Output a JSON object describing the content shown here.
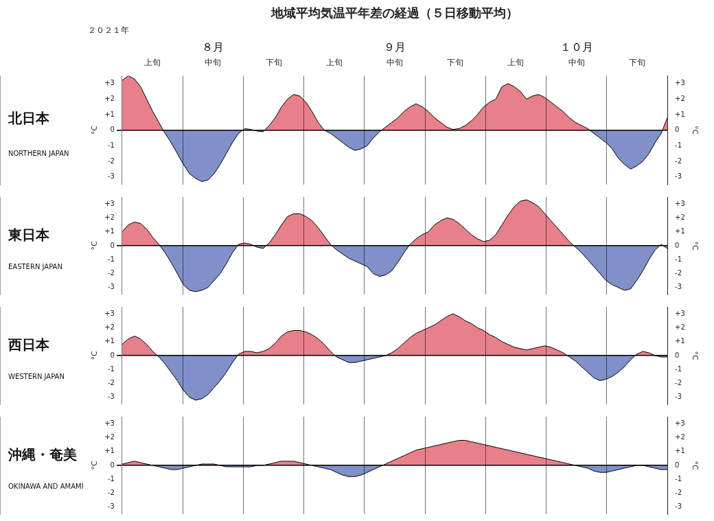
{
  "chart_data": [
    {
      "type": "area",
      "title": "地域平均気温平年差の経過（５日移動平均）",
      "subtitle": "２０２１年",
      "annotations": [
        {
          "text": "北日本"
        },
        {
          "text": "NORTHERN JAPAN"
        },
        {
          "text": "８月",
          "x": 15
        },
        {
          "text": "９月",
          "x": 45
        },
        {
          "text": "１０月",
          "x": 75
        }
      ],
      "x": [
        0,
        1.0112,
        2.0225,
        3.0337,
        4.0449,
        5.0562,
        6.0674,
        7.0787,
        8.0899,
        9.1011,
        10.1124,
        11.1236,
        12.1348,
        13.1461,
        14.1573,
        15.1685,
        16.1798,
        17.191,
        18.2022,
        19.2135,
        20.2247,
        21.236,
        22.2472,
        23.2584,
        24.2697,
        25.2809,
        26.2921,
        27.3034,
        28.3146,
        29.3258,
        30.3371,
        31.3483,
        32.3596,
        33.3708,
        34.382,
        35.3933,
        36.4045,
        37.4157,
        38.427,
        39.4382,
        40.4494,
        41.4607,
        42.4719,
        43.4831,
        44.4944,
        45.5056,
        46.5169,
        47.5281,
        48.5393,
        49.5506,
        50.5618,
        51.573,
        52.5843,
        53.5955,
        54.6067,
        55.618,
        56.6292,
        57.6404,
        58.6517,
        59.6629,
        60.6742,
        61.6854,
        62.6966,
        63.7079,
        64.7191,
        65.7303,
        66.7416,
        67.7528,
        68.764,
        69.7753,
        70.7865,
        71.7978,
        72.809,
        73.8202,
        74.8315,
        75.8427,
        76.8539,
        77.8652,
        78.8764,
        79.8876,
        80.8989,
        81.9101,
        82.9213,
        83.9326,
        84.9438,
        85.9551,
        86.9663,
        87.9775,
        88.9888,
        90
      ],
      "values": [
        3.2,
        3.5,
        3.3,
        2.8,
        2.0,
        1.2,
        0.5,
        -0.2,
        -0.8,
        -1.5,
        -2.2,
        -2.8,
        -3.1,
        -3.3,
        -3.2,
        -2.8,
        -2.2,
        -1.5,
        -0.8,
        -0.2,
        0.1,
        0.05,
        -0.05,
        -0.1,
        0.3,
        0.8,
        1.5,
        2.0,
        2.3,
        2.2,
        1.8,
        1.2,
        0.5,
        0.0,
        -0.2,
        -0.5,
        -0.8,
        -1.1,
        -1.3,
        -1.2,
        -1.0,
        -0.5,
        -0.1,
        0.2,
        0.5,
        0.8,
        1.2,
        1.5,
        1.7,
        1.5,
        1.2,
        0.8,
        0.5,
        0.2,
        0.05,
        0.1,
        0.3,
        0.6,
        1.0,
        1.5,
        1.8,
        2.0,
        2.8,
        3.0,
        2.8,
        2.5,
        2.0,
        2.2,
        2.3,
        2.1,
        1.8,
        1.5,
        1.2,
        0.8,
        0.5,
        0.3,
        0.1,
        -0.2,
        -0.5,
        -0.8,
        -1.2,
        -1.8,
        -2.2,
        -2.5,
        -2.3,
        -2.0,
        -1.5,
        -0.8,
        -0.2,
        0.8
      ],
      "color": "#000000",
      "colors": [
        "#E8808A",
        "#8090C8"
      ],
      "xlim": [
        0,
        90
      ],
      "xticks": [
        0,
        10,
        20,
        30,
        40,
        50,
        60,
        70,
        80,
        90
      ],
      "x2lim": [
        0,
        90
      ],
      "x2ticks": [
        {
          "value": 5,
          "label": "上旬"
        },
        {
          "value": 15,
          "label": "中旬"
        },
        {
          "value": 25,
          "label": "下旬"
        },
        {
          "value": 35,
          "label": "上旬"
        },
        {
          "value": 45,
          "label": "中旬"
        },
        {
          "value": 55,
          "label": "下旬"
        },
        {
          "value": 65,
          "label": "上旬"
        },
        {
          "value": 75,
          "label": "中旬"
        },
        {
          "value": 85,
          "label": "下旬"
        }
      ],
      "ylabel": "°C",
      "ylim": [
        -3.5,
        3.5
      ],
      "yticks": [
        -3,
        -2,
        -1,
        0,
        {
          "value": 1,
          "label": "+1"
        },
        {
          "value": 2,
          "label": "+2"
        },
        {
          "value": 3,
          "label": "+3"
        }
      ],
      "y2label": "°C",
      "y2lim": [
        -3.5,
        3.5
      ],
      "y2ticks": [
        -3,
        -2,
        -1,
        0,
        {
          "value": 1,
          "label": "+1"
        },
        {
          "value": 2,
          "label": "+2"
        },
        {
          "value": 3,
          "label": "+3"
        }
      ],
      "grid": "x",
      "tick_labels": "y"
    },
    {
      "type": "area",
      "annotations": [
        {
          "text": "東日本"
        },
        {
          "text": "EASTERN JAPAN"
        }
      ],
      "x": [
        0,
        1.0112,
        2.0225,
        3.0337,
        4.0449,
        5.0562,
        6.0674,
        7.0787,
        8.0899,
        9.1011,
        10.1124,
        11.1236,
        12.1348,
        13.1461,
        14.1573,
        15.1685,
        16.1798,
        17.191,
        18.2022,
        19.2135,
        20.2247,
        21.236,
        22.2472,
        23.2584,
        24.2697,
        25.2809,
        26.2921,
        27.3034,
        28.3146,
        29.3258,
        30.3371,
        31.3483,
        32.3596,
        33.3708,
        34.382,
        35.3933,
        36.4045,
        37.4157,
        38.427,
        39.4382,
        40.4494,
        41.4607,
        42.4719,
        43.4831,
        44.4944,
        45.5056,
        46.5169,
        47.5281,
        48.5393,
        49.5506,
        50.5618,
        51.573,
        52.5843,
        53.5955,
        54.6067,
        55.618,
        56.6292,
        57.6404,
        58.6517,
        59.6629,
        60.6742,
        61.6854,
        62.6966,
        63.7079,
        64.7191,
        65.7303,
        66.7416,
        67.7528,
        68.764,
        69.7753,
        70.7865,
        71.7978,
        72.809,
        73.8202,
        74.8315,
        75.8427,
        76.8539,
        77.8652,
        78.8764,
        79.8876,
        80.8989,
        81.9101,
        82.9213,
        83.9326,
        84.9438,
        85.9551,
        86.9663,
        87.9775,
        88.9888,
        90
      ],
      "values": [
        1.0,
        1.5,
        1.7,
        1.6,
        1.2,
        0.6,
        0.1,
        -0.5,
        -1.2,
        -2.0,
        -2.8,
        -3.2,
        -3.3,
        -3.2,
        -3.0,
        -2.5,
        -2.0,
        -1.3,
        -0.5,
        0.1,
        0.2,
        0.1,
        -0.1,
        -0.2,
        0.2,
        0.8,
        1.5,
        2.1,
        2.3,
        2.3,
        2.1,
        1.8,
        1.3,
        0.7,
        0.1,
        -0.3,
        -0.6,
        -0.9,
        -1.1,
        -1.3,
        -1.5,
        -2.0,
        -2.2,
        -2.1,
        -1.8,
        -1.2,
        -0.5,
        0.1,
        0.5,
        0.8,
        1.0,
        1.5,
        1.8,
        2.0,
        1.9,
        1.6,
        1.2,
        0.8,
        0.5,
        0.3,
        0.4,
        0.8,
        1.5,
        2.2,
        2.8,
        3.2,
        3.3,
        3.1,
        2.8,
        2.3,
        1.8,
        1.3,
        0.8,
        0.3,
        -0.1,
        -0.5,
        -1.0,
        -1.5,
        -2.0,
        -2.5,
        -2.8,
        -3.0,
        -3.2,
        -3.1,
        -2.5,
        -1.8,
        -1.0,
        -0.3,
        0.1,
        -0.2
      ],
      "color": "#000000",
      "colors": [
        "#E8808A",
        "#8090C8"
      ],
      "xlim": [
        0,
        90
      ],
      "xticks": [
        0,
        10,
        20,
        30,
        40,
        50,
        60,
        70,
        80,
        90
      ],
      "ylabel": "°C",
      "ylim": [
        -3.5,
        3.5
      ],
      "yticks": [
        -3,
        -2,
        -1,
        0,
        {
          "value": 1,
          "label": "+1"
        },
        {
          "value": 2,
          "label": "+2"
        },
        {
          "value": 3,
          "label": "+3"
        }
      ],
      "y2label": "°C",
      "y2lim": [
        -3.5,
        3.5
      ],
      "y2ticks": [
        -3,
        -2,
        -1,
        0,
        {
          "value": 1,
          "label": "+1"
        },
        {
          "value": 2,
          "label": "+2"
        },
        {
          "value": 3,
          "label": "+3"
        }
      ],
      "grid": "x",
      "tick_labels": "y"
    },
    {
      "type": "area",
      "annotations": [
        {
          "text": "西日本"
        },
        {
          "text": "WESTERN JAPAN"
        }
      ],
      "x": [
        0,
        1.0112,
        2.0225,
        3.0337,
        4.0449,
        5.0562,
        6.0674,
        7.0787,
        8.0899,
        9.1011,
        10.1124,
        11.1236,
        12.1348,
        13.1461,
        14.1573,
        15.1685,
        16.1798,
        17.191,
        18.2022,
        19.2135,
        20.2247,
        21.236,
        22.2472,
        23.2584,
        24.2697,
        25.2809,
        26.2921,
        27.3034,
        28.3146,
        29.3258,
        30.3371,
        31.3483,
        32.3596,
        33.3708,
        34.382,
        35.3933,
        36.4045,
        37.4157,
        38.427,
        39.4382,
        40.4494,
        41.4607,
        42.4719,
        43.4831,
        44.4944,
        45.5056,
        46.5169,
        47.5281,
        48.5393,
        49.5506,
        50.5618,
        51.573,
        52.5843,
        53.5955,
        54.6067,
        55.618,
        56.6292,
        57.6404,
        58.6517,
        59.6629,
        60.6742,
        61.6854,
        62.6966,
        63.7079,
        64.7191,
        65.7303,
        66.7416,
        67.7528,
        68.764,
        69.7753,
        70.7865,
        71.7978,
        72.809,
        73.8202,
        74.8315,
        75.8427,
        76.8539,
        77.8652,
        78.8764,
        79.8876,
        80.8989,
        81.9101,
        82.9213,
        83.9326,
        84.9438,
        85.9551,
        86.9663,
        87.9775,
        88.9888,
        90
      ],
      "values": [
        0.8,
        1.2,
        1.4,
        1.2,
        0.8,
        0.3,
        -0.1,
        -0.6,
        -1.2,
        -1.8,
        -2.5,
        -3.0,
        -3.2,
        -3.1,
        -2.8,
        -2.3,
        -1.8,
        -1.2,
        -0.5,
        0.1,
        0.3,
        0.3,
        0.2,
        0.3,
        0.5,
        0.9,
        1.4,
        1.7,
        1.8,
        1.8,
        1.7,
        1.5,
        1.2,
        0.8,
        0.3,
        -0.1,
        -0.3,
        -0.5,
        -0.5,
        -0.4,
        -0.3,
        -0.2,
        -0.1,
        0.0,
        0.2,
        0.5,
        0.9,
        1.3,
        1.6,
        1.8,
        2.0,
        2.2,
        2.5,
        2.8,
        3.0,
        2.8,
        2.5,
        2.3,
        2.0,
        1.8,
        1.5,
        1.3,
        1.0,
        0.8,
        0.6,
        0.5,
        0.4,
        0.5,
        0.6,
        0.7,
        0.6,
        0.4,
        0.2,
        -0.1,
        -0.4,
        -0.8,
        -1.2,
        -1.6,
        -1.8,
        -1.7,
        -1.5,
        -1.2,
        -0.8,
        -0.3,
        0.1,
        0.3,
        0.2,
        0.0,
        -0.1,
        -0.1
      ],
      "color": "#000000",
      "colors": [
        "#E8808A",
        "#8090C8"
      ],
      "xlim": [
        0,
        90
      ],
      "xticks": [
        0,
        10,
        20,
        30,
        40,
        50,
        60,
        70,
        80,
        90
      ],
      "ylabel": "°C",
      "ylim": [
        -3.5,
        3.5
      ],
      "yticks": [
        -3,
        -2,
        -1,
        0,
        {
          "value": 1,
          "label": "+1"
        },
        {
          "value": 2,
          "label": "+2"
        },
        {
          "value": 3,
          "label": "+3"
        }
      ],
      "y2label": "°C",
      "y2lim": [
        -3.5,
        3.5
      ],
      "y2ticks": [
        -3,
        -2,
        -1,
        0,
        {
          "value": 1,
          "label": "+1"
        },
        {
          "value": 2,
          "label": "+2"
        },
        {
          "value": 3,
          "label": "+3"
        }
      ],
      "grid": "x",
      "tick_labels": "y"
    },
    {
      "type": "area",
      "annotations": [
        {
          "text": "沖縄・奄美"
        },
        {
          "text": "OKINAWA AND AMAMI"
        }
      ],
      "x": [
        0,
        1.0112,
        2.0225,
        3.0337,
        4.0449,
        5.0562,
        6.0674,
        7.0787,
        8.0899,
        9.1011,
        10.1124,
        11.1236,
        12.1348,
        13.1461,
        14.1573,
        15.1685,
        16.1798,
        17.191,
        18.2022,
        19.2135,
        20.2247,
        21.236,
        22.2472,
        23.2584,
        24.2697,
        25.2809,
        26.2921,
        27.3034,
        28.3146,
        29.3258,
        30.3371,
        31.3483,
        32.3596,
        33.3708,
        34.382,
        35.3933,
        36.4045,
        37.4157,
        38.427,
        39.4382,
        40.4494,
        41.4607,
        42.4719,
        43.4831,
        44.4944,
        45.5056,
        46.5169,
        47.5281,
        48.5393,
        49.5506,
        50.5618,
        51.573,
        52.5843,
        53.5955,
        54.6067,
        55.618,
        56.6292,
        57.6404,
        58.6517,
        59.6629,
        60.6742,
        61.6854,
        62.6966,
        63.7079,
        64.7191,
        65.7303,
        66.7416,
        67.7528,
        68.764,
        69.7753,
        70.7865,
        71.7978,
        72.809,
        73.8202,
        74.8315,
        75.8427,
        76.8539,
        77.8652,
        78.8764,
        79.8876,
        80.8989,
        81.9101,
        82.9213,
        83.9326,
        84.9438,
        85.9551,
        86.9663,
        87.9775,
        88.9888,
        90
      ],
      "values": [
        0.1,
        0.2,
        0.3,
        0.2,
        0.1,
        0.0,
        -0.1,
        -0.2,
        -0.3,
        -0.3,
        -0.2,
        -0.1,
        0.0,
        0.1,
        0.1,
        0.1,
        0.0,
        -0.1,
        -0.1,
        -0.1,
        -0.1,
        -0.1,
        0.0,
        0.0,
        0.1,
        0.2,
        0.3,
        0.3,
        0.3,
        0.2,
        0.1,
        0.0,
        -0.1,
        -0.2,
        -0.3,
        -0.5,
        -0.7,
        -0.8,
        -0.8,
        -0.7,
        -0.5,
        -0.3,
        -0.1,
        0.1,
        0.3,
        0.5,
        0.7,
        0.9,
        1.1,
        1.2,
        1.3,
        1.4,
        1.5,
        1.6,
        1.7,
        1.8,
        1.8,
        1.7,
        1.6,
        1.5,
        1.4,
        1.3,
        1.2,
        1.1,
        1.0,
        0.9,
        0.8,
        0.7,
        0.6,
        0.5,
        0.4,
        0.3,
        0.2,
        0.1,
        0.0,
        -0.1,
        -0.2,
        -0.4,
        -0.5,
        -0.5,
        -0.4,
        -0.3,
        -0.2,
        -0.1,
        0.0,
        0.0,
        -0.1,
        -0.2,
        -0.3,
        -0.3
      ],
      "color": "#000000",
      "colors": [
        "#E8808A",
        "#8090C8"
      ],
      "xlim": [
        0,
        90
      ],
      "xticks": [
        0,
        10,
        20,
        30,
        40,
        50,
        60,
        70,
        80,
        90
      ],
      "ylabel": "°C",
      "ylim": [
        -3.5,
        3.5
      ],
      "yticks": [
        -3,
        -2,
        -1,
        0,
        {
          "value": 1,
          "label": "+1"
        },
        {
          "value": 2,
          "label": "+2"
        },
        {
          "value": 3,
          "label": "+3"
        }
      ],
      "y2label": "°C",
      "y2lim": [
        -3.5,
        3.5
      ],
      "y2ticks": [
        -3,
        -2,
        -1,
        0,
        {
          "value": 1,
          "label": "+1"
        },
        {
          "value": 2,
          "label": "+2"
        },
        {
          "value": 3,
          "label": "+3"
        }
      ],
      "grid": "x",
      "tick_labels": "y"
    }
  ]
}
